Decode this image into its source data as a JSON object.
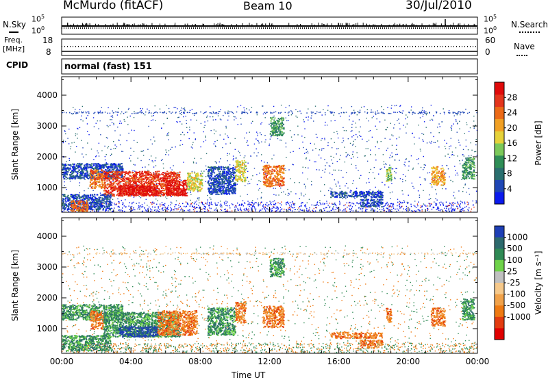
{
  "header": {
    "station": "McMurdo (fitACF)",
    "beam": "Beam 10",
    "date": "30/Jul/2010"
  },
  "noise_panel": {
    "left_label": "N.Sky",
    "right_label": "N.Search",
    "left_ticks": [
      "10^5",
      "10^0"
    ],
    "right_ticks": [
      "10^5",
      "10^0"
    ]
  },
  "freq_panel": {
    "left_label_top": "Freq.",
    "left_label_bottom": "[MHz]",
    "right_label": "Nave",
    "left_ticks": [
      "18",
      "8"
    ],
    "right_ticks": [
      "60",
      "0"
    ]
  },
  "cpid_panel": {
    "label": "CPID",
    "value": "normal (fast) 151"
  },
  "chart_data": [
    {
      "type": "heatmap",
      "name": "power",
      "ylabel": "Slant Range [km]",
      "xlabel": "Time UT",
      "x_ticks": [
        "00:00",
        "04:00",
        "08:00",
        "12:00",
        "16:00",
        "20:00",
        "00:00"
      ],
      "y_ticks": [
        "1000",
        "2000",
        "3000",
        "4000"
      ],
      "ylim": [
        200,
        4600
      ],
      "xlim_hours": [
        0,
        24
      ],
      "colorbar": {
        "label": "Power [dB]",
        "ticks": [
          "4",
          "8",
          "12",
          "16",
          "20",
          "24",
          "28"
        ],
        "colors": [
          "#0a1aee",
          "#1f47b5",
          "#2a6f6f",
          "#2f8e57",
          "#7cc95a",
          "#e6d23a",
          "#f1a024",
          "#ec6a17",
          "#e4351c",
          "#e00a0a"
        ]
      },
      "features": [
        {
          "t": [
            0.0,
            3.5
          ],
          "r": [
            1300,
            1800
          ],
          "level": 1
        },
        {
          "t": [
            1.6,
            2.4
          ],
          "r": [
            1000,
            1600
          ],
          "level": 7
        },
        {
          "t": [
            2.4,
            6.8
          ],
          "r": [
            750,
            1550
          ],
          "level": 8
        },
        {
          "t": [
            3.3,
            5.5
          ],
          "r": [
            750,
            1100
          ],
          "level": 9
        },
        {
          "t": [
            6.0,
            7.2
          ],
          "r": [
            750,
            1250
          ],
          "level": 9
        },
        {
          "t": [
            7.2,
            8.1
          ],
          "r": [
            900,
            1500
          ],
          "level": 5
        },
        {
          "t": [
            8.4,
            10.0
          ],
          "r": [
            800,
            1700
          ],
          "level": 1
        },
        {
          "t": [
            10.0,
            10.6
          ],
          "r": [
            1200,
            1900
          ],
          "level": 5
        },
        {
          "t": [
            11.6,
            12.8
          ],
          "r": [
            1050,
            1750
          ],
          "level": 7
        },
        {
          "t": [
            12.0,
            12.8
          ],
          "r": [
            2700,
            3300
          ],
          "level": 3
        },
        {
          "t": [
            0.0,
            2.8
          ],
          "r": [
            300,
            800
          ],
          "level": 1
        },
        {
          "t": [
            0.5,
            1.5
          ],
          "r": [
            250,
            600
          ],
          "level": 7
        },
        {
          "t": [
            15.5,
            18.5
          ],
          "r": [
            700,
            900
          ],
          "level": 1
        },
        {
          "t": [
            17.2,
            18.5
          ],
          "r": [
            400,
            650
          ],
          "level": 1
        },
        {
          "t": [
            18.7,
            19.0
          ],
          "r": [
            1200,
            1700
          ],
          "level": 4
        },
        {
          "t": [
            21.3,
            22.1
          ],
          "r": [
            1100,
            1700
          ],
          "level": 6
        },
        {
          "t": [
            23.1,
            23.8
          ],
          "r": [
            1300,
            2000
          ],
          "level": 3
        }
      ]
    },
    {
      "type": "heatmap",
      "name": "velocity",
      "ylabel": "Slant Range [km]",
      "xlabel": "Time UT",
      "x_ticks": [
        "00:00",
        "04:00",
        "08:00",
        "12:00",
        "16:00",
        "20:00",
        "00:00"
      ],
      "y_ticks": [
        "1000",
        "2000",
        "3000",
        "4000"
      ],
      "ylim": [
        200,
        4600
      ],
      "xlim_hours": [
        0,
        24
      ],
      "colorbar": {
        "label": "Velocity [m s⁻¹]",
        "ticks": [
          "1000",
          "500",
          "100",
          "25",
          "-25",
          "-100",
          "-500",
          "-1000"
        ],
        "colors": [
          "#1e3fb5",
          "#2d6a6d",
          "#2f8a55",
          "#6fd34a",
          "#c0c0c0",
          "#f6c98b",
          "#f1a24a",
          "#ef7a12",
          "#e33c10",
          "#e00000"
        ]
      },
      "features": [
        {
          "t": [
            0.0,
            3.5
          ],
          "r": [
            1300,
            1800
          ],
          "level": 2
        },
        {
          "t": [
            1.6,
            2.4
          ],
          "r": [
            1000,
            1600
          ],
          "level": 7
        },
        {
          "t": [
            2.4,
            6.8
          ],
          "r": [
            750,
            1550
          ],
          "level": 2
        },
        {
          "t": [
            3.3,
            5.5
          ],
          "r": [
            750,
            1100
          ],
          "level": 0
        },
        {
          "t": [
            5.5,
            7.8
          ],
          "r": [
            800,
            1600
          ],
          "level": 7
        },
        {
          "t": [
            8.4,
            10.0
          ],
          "r": [
            800,
            1700
          ],
          "level": 2
        },
        {
          "t": [
            10.0,
            10.6
          ],
          "r": [
            1200,
            1900
          ],
          "level": 7
        },
        {
          "t": [
            11.6,
            12.8
          ],
          "r": [
            1050,
            1750
          ],
          "level": 7
        },
        {
          "t": [
            12.0,
            12.8
          ],
          "r": [
            2700,
            3300
          ],
          "level": 2
        },
        {
          "t": [
            0.0,
            2.8
          ],
          "r": [
            300,
            800
          ],
          "level": 2
        },
        {
          "t": [
            15.5,
            18.5
          ],
          "r": [
            700,
            900
          ],
          "level": 7
        },
        {
          "t": [
            17.2,
            18.5
          ],
          "r": [
            400,
            650
          ],
          "level": 7
        },
        {
          "t": [
            18.7,
            19.0
          ],
          "r": [
            1200,
            1700
          ],
          "level": 7
        },
        {
          "t": [
            21.3,
            22.1
          ],
          "r": [
            1100,
            1700
          ],
          "level": 7
        },
        {
          "t": [
            23.1,
            23.8
          ],
          "r": [
            1300,
            2000
          ],
          "level": 2
        }
      ]
    }
  ]
}
